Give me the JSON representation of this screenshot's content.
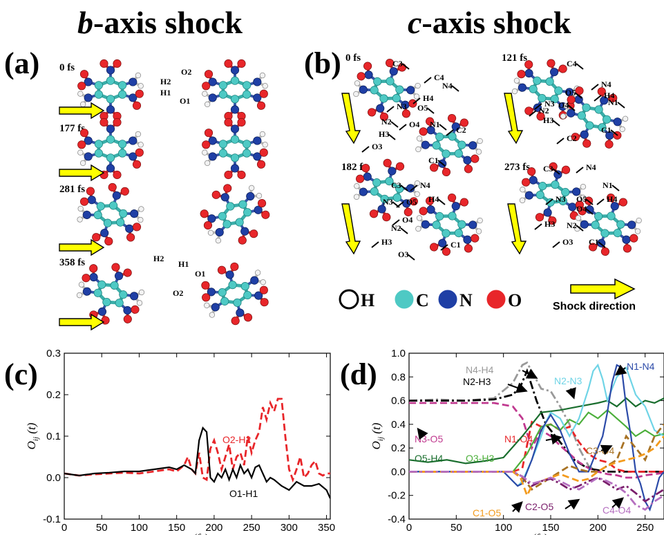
{
  "headers": {
    "left": "b-axis shock",
    "left_italic": "b",
    "left_rest": "-axis shock",
    "right": "c-axis shock",
    "right_italic": "c",
    "right_rest": "-axis shock"
  },
  "panels": {
    "a": "(a)",
    "b": "(b)",
    "c": "(c)",
    "d": "(d)"
  },
  "snapshots_a": [
    {
      "time": "0 fs",
      "atoms": [
        "H2",
        "H1",
        "O2",
        "O1"
      ]
    },
    {
      "time": "177 fs",
      "atoms": []
    },
    {
      "time": "281 fs",
      "atoms": []
    },
    {
      "time": "358 fs",
      "atoms": [
        "H2",
        "H1",
        "O1",
        "O2"
      ]
    }
  ],
  "snapshots_b": [
    {
      "time": "0 fs",
      "atoms": [
        "C3",
        "C4",
        "N4",
        "N3",
        "O5",
        "H4",
        "N2",
        "O4",
        "N1",
        "C2",
        "H3",
        "O3",
        "C1"
      ]
    },
    {
      "time": "121 fs",
      "atoms": [
        "C4",
        "N4",
        "O5",
        "H4",
        "N1",
        "N3",
        "O4",
        "N2",
        "H3",
        "C2",
        "C1"
      ]
    },
    {
      "time": "182 fs",
      "atoms": [
        "C3",
        "N4",
        "N3",
        "O5",
        "H4",
        "O4",
        "N2",
        "H3",
        "O3",
        "C1"
      ]
    },
    {
      "time": "273 fs",
      "atoms": [
        "C3",
        "N4",
        "N1",
        "N3",
        "O5",
        "H4",
        "O4",
        "H3",
        "N2",
        "O3",
        "C1"
      ]
    }
  ],
  "legend": {
    "items": [
      {
        "label": "H",
        "color": "#ffffff"
      },
      {
        "label": "C",
        "color": "#4ec9c4"
      },
      {
        "label": "N",
        "color": "#1f3fa5"
      },
      {
        "label": "O",
        "color": "#e8262a"
      }
    ],
    "shock_label": "Shock direction"
  },
  "chart_data": [
    {
      "panel": "c",
      "type": "line",
      "xlabel": "t (fs)",
      "ylabel": "O_ij (t)",
      "xlim": [
        0,
        355
      ],
      "ylim": [
        -0.1,
        0.3
      ],
      "xticks": [
        "0",
        "50",
        "100",
        "150",
        "200",
        "250",
        "300",
        "350"
      ],
      "yticks": [
        "-0.1",
        "0.0",
        "0.1",
        "0.2",
        "0.3"
      ],
      "series": [
        {
          "name": "O2-H2",
          "color": "#e8262a",
          "style": "dashed",
          "x": [
            0,
            20,
            40,
            60,
            80,
            100,
            120,
            140,
            150,
            160,
            165,
            170,
            175,
            180,
            185,
            190,
            195,
            200,
            205,
            210,
            215,
            220,
            225,
            230,
            235,
            240,
            245,
            250,
            255,
            260,
            265,
            270,
            275,
            280,
            285,
            290,
            295,
            300,
            305,
            310,
            315,
            320,
            325,
            330,
            335,
            340,
            345,
            350,
            355
          ],
          "y": [
            0.01,
            0.005,
            0.008,
            0.01,
            0.012,
            0.01,
            0.015,
            0.02,
            0.015,
            0.03,
            0.05,
            0.02,
            0.01,
            0.06,
            0.0,
            -0.005,
            0.07,
            0.09,
            0.06,
            0.02,
            0.05,
            0.08,
            0.02,
            0.05,
            0.06,
            0.03,
            0.1,
            0.06,
            0.09,
            0.11,
            0.17,
            0.14,
            0.18,
            0.16,
            0.19,
            0.19,
            0.1,
            0.02,
            -0.005,
            0.02,
            0.05,
            0.0,
            0.01,
            0.03,
            0.04,
            0.01,
            0.005,
            0.01,
            0.01
          ]
        },
        {
          "name": "O1-H1",
          "color": "#000000",
          "style": "solid",
          "x": [
            0,
            20,
            40,
            60,
            80,
            100,
            120,
            140,
            150,
            160,
            170,
            175,
            180,
            185,
            190,
            195,
            200,
            205,
            210,
            215,
            220,
            225,
            230,
            235,
            240,
            245,
            250,
            255,
            260,
            265,
            270,
            275,
            280,
            290,
            300,
            310,
            320,
            330,
            340,
            350,
            355
          ],
          "y": [
            0.01,
            0.005,
            0.01,
            0.012,
            0.015,
            0.015,
            0.02,
            0.025,
            0.02,
            0.03,
            0.02,
            0.01,
            0.09,
            0.12,
            0.11,
            0.0,
            -0.01,
            0.01,
            0.0,
            0.02,
            -0.005,
            0.02,
            0.0,
            0.03,
            0.01,
            0.02,
            0.0,
            0.025,
            0.03,
            0.01,
            -0.01,
            0.0,
            -0.005,
            -0.02,
            -0.03,
            -0.01,
            -0.02,
            -0.02,
            -0.015,
            -0.03,
            -0.05
          ]
        }
      ]
    },
    {
      "panel": "d",
      "type": "line",
      "xlabel": "t (fs)",
      "ylabel": "O_ij (t)",
      "xlim": [
        0,
        270
      ],
      "ylim": [
        -0.4,
        1.0
      ],
      "xticks": [
        "0",
        "50",
        "100",
        "150",
        "200",
        "250"
      ],
      "yticks": [
        "-0.4",
        "-0.2",
        "0.0",
        "0.2",
        "0.4",
        "0.6",
        "0.8",
        "1.0"
      ],
      "series": [
        {
          "name": "N4-H4",
          "color": "#9a9a9a",
          "style": "dashdot",
          "x": [
            0,
            30,
            60,
            90,
            110,
            120,
            125,
            140,
            150,
            160,
            170,
            180,
            190,
            200
          ],
          "y": [
            0.6,
            0.61,
            0.6,
            0.62,
            0.75,
            0.9,
            0.92,
            0.7,
            0.68,
            0.55,
            0.4,
            0.2,
            0.05,
            0.0
          ]
        },
        {
          "name": "N2-H3",
          "color": "#000000",
          "style": "dashdot",
          "x": [
            0,
            30,
            60,
            90,
            110,
            118,
            125,
            135,
            145,
            155,
            165,
            175,
            185,
            195,
            210,
            230,
            250,
            270
          ],
          "y": [
            0.6,
            0.6,
            0.6,
            0.61,
            0.65,
            0.72,
            0.85,
            0.6,
            0.4,
            0.3,
            0.2,
            0.1,
            0.05,
            0.02,
            0.0,
            0.0,
            0.0,
            0.0
          ]
        },
        {
          "name": "N3-O5",
          "color": "#c0398f",
          "style": "dashed",
          "x": [
            0,
            30,
            60,
            90,
            110,
            120,
            130,
            140,
            150,
            160,
            170,
            180,
            190,
            200,
            210,
            220,
            230,
            240,
            250,
            260,
            270
          ],
          "y": [
            0.58,
            0.58,
            0.58,
            0.58,
            0.55,
            0.45,
            0.2,
            0.35,
            0.3,
            0.22,
            0.15,
            0.08,
            0.03,
            0.0,
            -0.02,
            -0.03,
            -0.05,
            -0.05,
            -0.03,
            -0.02,
            -0.01
          ]
        },
        {
          "name": "N1-O4",
          "color": "#e8262a",
          "style": "dashed",
          "x": [
            0,
            30,
            60,
            90,
            110,
            120,
            130,
            140,
            150,
            160,
            170,
            180,
            190,
            200,
            210,
            220,
            230,
            240,
            250,
            260,
            270
          ],
          "y": [
            0.0,
            0.0,
            0.0,
            0.0,
            0.0,
            0.03,
            0.42,
            0.38,
            0.4,
            0.35,
            0.38,
            0.25,
            0.15,
            0.1,
            0.08,
            0.02,
            0.0,
            0.0,
            0.0,
            0.0,
            0.0
          ]
        },
        {
          "name": "O5-H4",
          "color": "#1a6e2e",
          "style": "solid",
          "x": [
            0,
            20,
            40,
            60,
            80,
            100,
            120,
            140,
            160,
            180,
            200,
            210,
            220,
            230,
            240,
            250,
            260,
            270
          ],
          "y": [
            0.1,
            0.08,
            0.1,
            0.07,
            0.09,
            0.12,
            0.3,
            0.5,
            0.52,
            0.55,
            0.58,
            0.6,
            0.55,
            0.62,
            0.55,
            0.6,
            0.58,
            0.62
          ]
        },
        {
          "name": "O3-H3",
          "color": "#4caf3b",
          "style": "solid",
          "x": [
            0,
            30,
            60,
            90,
            110,
            125,
            140,
            150,
            160,
            170,
            180,
            190,
            200,
            210,
            220,
            230,
            240,
            250,
            260,
            270
          ],
          "y": [
            0.0,
            0.0,
            0.0,
            0.0,
            0.0,
            0.15,
            0.38,
            0.4,
            0.35,
            0.44,
            0.4,
            0.5,
            0.45,
            0.52,
            0.45,
            0.38,
            0.3,
            0.35,
            0.3,
            0.32
          ]
        },
        {
          "name": "N2-N3",
          "color": "#6fd4e6",
          "style": "solid",
          "x": [
            0,
            30,
            60,
            90,
            100,
            110,
            115,
            120,
            130,
            140,
            145,
            150,
            160,
            170,
            180,
            190,
            195,
            200,
            205,
            210,
            220,
            230,
            240,
            245,
            250,
            260,
            270
          ],
          "y": [
            0.0,
            0.0,
            0.0,
            0.0,
            0.0,
            -0.08,
            -0.12,
            -0.08,
            0.1,
            0.3,
            0.42,
            0.5,
            0.45,
            0.3,
            0.45,
            0.7,
            0.85,
            0.9,
            0.78,
            0.6,
            0.8,
            0.88,
            0.65,
            0.6,
            0.55,
            0.35,
            0.3
          ]
        },
        {
          "name": "N1-N4",
          "color": "#2b4aa8",
          "style": "solid",
          "x": [
            0,
            30,
            60,
            90,
            100,
            110,
            115,
            120,
            130,
            140,
            150,
            160,
            170,
            180,
            190,
            200,
            205,
            210,
            215,
            220,
            225,
            230,
            235,
            240,
            245,
            250,
            255,
            260,
            265,
            270
          ],
          "y": [
            0.0,
            0.0,
            0.0,
            0.0,
            0.0,
            -0.08,
            -0.12,
            -0.1,
            0.1,
            0.35,
            0.48,
            0.35,
            0.15,
            0.0,
            0.0,
            0.2,
            0.3,
            0.5,
            0.75,
            0.9,
            0.88,
            0.55,
            0.3,
            0.0,
            -0.1,
            -0.25,
            -0.32,
            -0.2,
            -0.05,
            0.0
          ]
        },
        {
          "name": "C3-O4",
          "color": "#a87325",
          "style": "dashed",
          "x": [
            0,
            30,
            60,
            90,
            110,
            120,
            130,
            140,
            150,
            160,
            170,
            180,
            190,
            200,
            210,
            220,
            230,
            240,
            250,
            260,
            270
          ],
          "y": [
            0.0,
            0.0,
            0.0,
            0.0,
            0.0,
            -0.05,
            -0.15,
            -0.1,
            -0.05,
            0.0,
            0.05,
            0.02,
            0.0,
            0.0,
            0.05,
            0.1,
            0.3,
            0.2,
            0.1,
            0.3,
            0.4
          ]
        },
        {
          "name": "C1-O5",
          "color": "#f39b1d",
          "style": "dashed",
          "x": [
            0,
            30,
            60,
            90,
            110,
            118,
            125,
            130,
            140,
            150,
            160,
            170,
            180,
            190,
            200,
            210,
            220,
            230,
            240,
            250,
            260,
            270
          ],
          "y": [
            0.0,
            0.0,
            0.0,
            0.0,
            0.0,
            -0.05,
            -0.2,
            -0.12,
            -0.08,
            -0.05,
            -0.02,
            -0.05,
            -0.08,
            -0.06,
            0.0,
            0.05,
            0.08,
            0.1,
            0.12,
            0.15,
            0.2,
            0.3
          ]
        },
        {
          "name": "C2-O5",
          "color": "#7a1e6b",
          "style": "dashdot",
          "x": [
            0,
            30,
            60,
            90,
            110,
            120,
            130,
            140,
            150,
            160,
            170,
            180,
            190,
            200,
            210,
            220,
            230,
            240,
            250,
            260,
            270
          ],
          "y": [
            0.0,
            0.0,
            0.0,
            0.0,
            0.0,
            -0.04,
            -0.12,
            -0.08,
            -0.06,
            -0.1,
            -0.15,
            -0.12,
            -0.08,
            -0.05,
            -0.1,
            -0.15,
            -0.12,
            -0.18,
            -0.25,
            -0.2,
            -0.15
          ]
        },
        {
          "name": "C4-O4",
          "color": "#b56fc0",
          "style": "dashdot",
          "x": [
            0,
            30,
            60,
            90,
            110,
            120,
            130,
            140,
            150,
            160,
            170,
            180,
            190,
            200,
            210,
            220,
            230,
            240,
            250,
            260,
            270
          ],
          "y": [
            0.0,
            0.0,
            0.0,
            0.0,
            0.0,
            -0.04,
            -0.1,
            -0.08,
            -0.05,
            -0.08,
            -0.12,
            -0.15,
            -0.1,
            -0.05,
            -0.08,
            -0.12,
            -0.18,
            -0.28,
            -0.32,
            -0.25,
            -0.2
          ]
        }
      ]
    }
  ]
}
